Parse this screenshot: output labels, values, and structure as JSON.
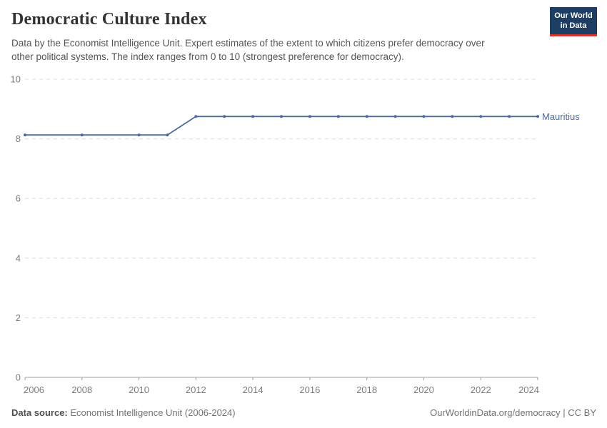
{
  "header": {
    "title": "Democratic Culture Index",
    "subtitle_line1": "Data by the Economist Intelligence Unit. Expert estimates of the extent to which citizens prefer democracy over",
    "subtitle_line2": "other political systems. The index ranges from 0 to 10 (strongest preference for democracy)."
  },
  "logo": {
    "line1": "Our World",
    "line2": "in Data",
    "bg_color": "#1d3d63",
    "accent_color": "#d0342c"
  },
  "chart_data": {
    "type": "line",
    "title": "Democratic Culture Index",
    "entity_label": "Mauritius",
    "line_color": "#4C6A9C",
    "x": [
      2006,
      2008,
      2010,
      2011,
      2012,
      2013,
      2014,
      2015,
      2016,
      2017,
      2018,
      2019,
      2020,
      2021,
      2022,
      2023,
      2024
    ],
    "series": [
      {
        "name": "Mauritius",
        "values": [
          8.13,
          8.13,
          8.13,
          8.13,
          8.75,
          8.75,
          8.75,
          8.75,
          8.75,
          8.75,
          8.75,
          8.75,
          8.75,
          8.75,
          8.75,
          8.75,
          8.75
        ]
      }
    ],
    "xlim": [
      2006,
      2024
    ],
    "ylim": [
      0,
      10
    ],
    "xticks": [
      2006,
      2008,
      2010,
      2012,
      2014,
      2016,
      2018,
      2020,
      2022,
      2024
    ],
    "yticks": [
      0,
      2,
      4,
      6,
      8,
      10
    ],
    "grid": "horizontal-dashed",
    "legend_position": "end-of-line",
    "xlabel": "",
    "ylabel": ""
  },
  "footer": {
    "source_label": "Data source:",
    "source_value": " Economist Intelligence Unit (2006-2024)",
    "credit": "OurWorldinData.org/democracy | CC BY"
  }
}
